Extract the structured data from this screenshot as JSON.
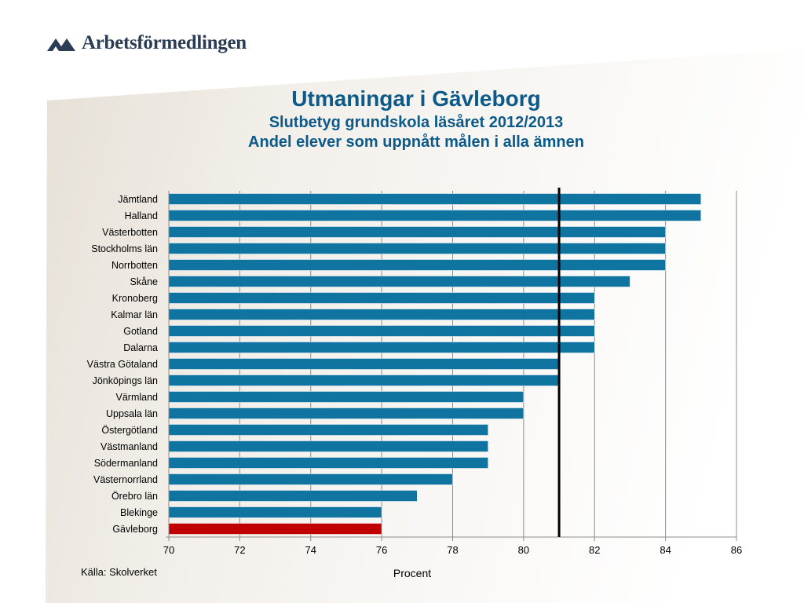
{
  "brand": {
    "name": "Arbetsförmedlingen",
    "logo_icon": "arbetsformedlingen-logo-icon"
  },
  "header": {
    "title": "Utmaningar i Gävleborg",
    "subtitle": "Slutbetyg grundskola läsåret 2012/2013",
    "subtitle2": "Andel elever som uppnått målen i alla ämnen"
  },
  "footer": {
    "source": "Källa: Skolverket"
  },
  "colors": {
    "bar": "#0f74a0",
    "highlight": "#c00000",
    "title": "#0c5a8a",
    "reference_line": "#000000"
  },
  "chart_data": {
    "type": "bar",
    "orientation": "horizontal",
    "title": "Utmaningar i Gävleborg",
    "xlabel": "Procent",
    "ylabel": "",
    "xlim": [
      70,
      86
    ],
    "xticks": [
      70,
      72,
      74,
      76,
      78,
      80,
      82,
      84,
      86
    ],
    "grid": "vertical",
    "reference_line": 81,
    "highlight_category": "Gävleborg",
    "categories": [
      "Jämtland",
      "Halland",
      "Västerbotten",
      "Stockholms län",
      "Norrbotten",
      "Skåne",
      "Kronoberg",
      "Kalmar län",
      "Gotland",
      "Dalarna",
      "Västra Götaland",
      "Jönköpings län",
      "Värmland",
      "Uppsala län",
      "Östergötland",
      "Västmanland",
      "Södermanland",
      "Västernorrland",
      "Örebro län",
      "Blekinge",
      "Gävleborg"
    ],
    "values": [
      85,
      85,
      84,
      84,
      84,
      83,
      82,
      82,
      82,
      82,
      81,
      81,
      80,
      80,
      79,
      79,
      79,
      78,
      77,
      76,
      76
    ]
  }
}
